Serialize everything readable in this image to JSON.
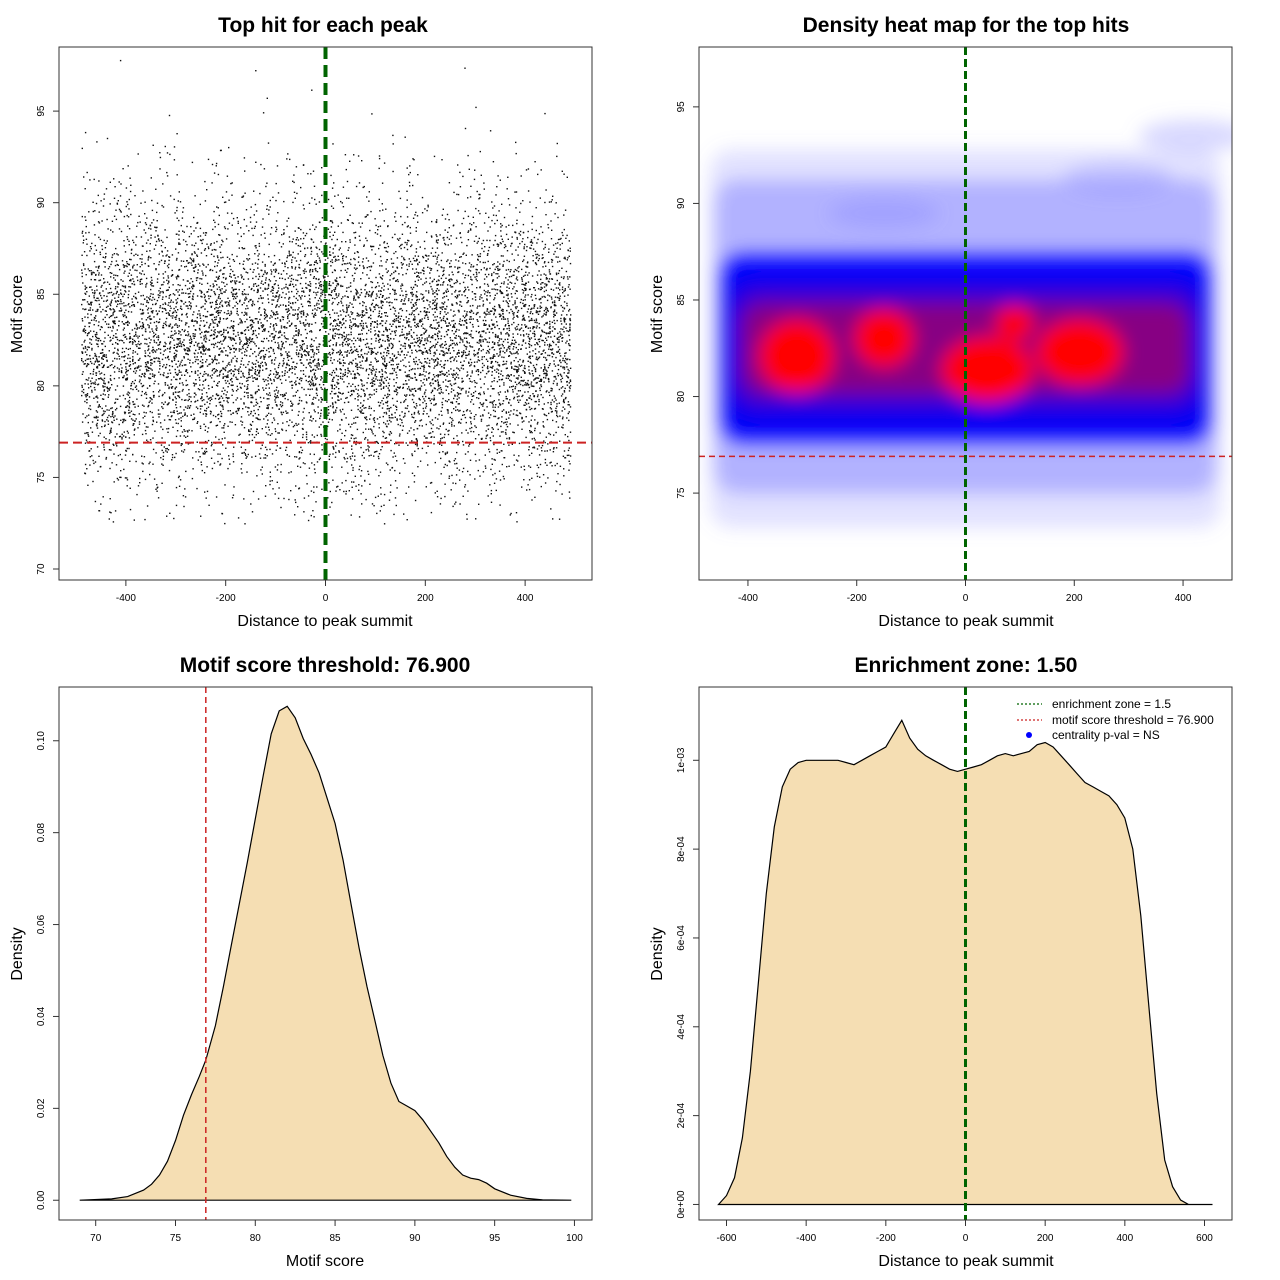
{
  "chart_data": [
    {
      "type": "scatter",
      "title": "Top hit for each peak",
      "xlabel": "Distance to peak summit",
      "ylabel": "Motif score",
      "xlim": [
        -534,
        534
      ],
      "ylim": [
        69.4,
        98.5
      ],
      "xticks": [
        -400,
        -200,
        0,
        200,
        400
      ],
      "yticks": [
        70,
        75,
        80,
        85,
        90,
        95
      ],
      "n_points": 9000,
      "x_range": [
        -490,
        490
      ],
      "score_mean": 82.5,
      "score_sd": 3.9,
      "vline": {
        "x": 0,
        "color": "#006400",
        "style": "dashed"
      },
      "hline": {
        "y": 76.9,
        "color": "#cc2222",
        "style": "dashed"
      },
      "grid": false,
      "legend": "none"
    },
    {
      "type": "heatmap",
      "title": "Density heat map for the top hits",
      "xlabel": "Distance to peak summit",
      "ylabel": "Motif score",
      "xlim": [
        -490,
        490
      ],
      "ylim": [
        70.5,
        98.1
      ],
      "xticks": [
        -400,
        -200,
        0,
        200,
        400
      ],
      "yticks": [
        75,
        80,
        85,
        90,
        95
      ],
      "color_scale": [
        "#ffffff",
        "#0000ff",
        "#ff0000"
      ],
      "density_peak_score": 82,
      "vline": {
        "x": 0,
        "color": "#006400",
        "style": "dashed"
      },
      "hline": {
        "y": 76.9,
        "color": "#cc2222",
        "style": "dashed"
      },
      "grid": false,
      "legend": "none"
    },
    {
      "type": "area",
      "title": "Motif score threshold: 76.900",
      "xlabel": "Motif score",
      "ylabel": "Density",
      "xlim": [
        67.7,
        101.1
      ],
      "ylim": [
        -0.0043,
        0.1117
      ],
      "xticks": [
        70,
        75,
        80,
        85,
        90,
        95,
        100
      ],
      "yticks": [
        0.0,
        0.02,
        0.04,
        0.06,
        0.08,
        0.1
      ],
      "ytick_labels": [
        "0.00",
        "0.02",
        "0.04",
        "0.06",
        "0.08",
        "0.10"
      ],
      "x": [
        69.0,
        71.0,
        72.0,
        73.0,
        73.5,
        74.0,
        74.5,
        75.0,
        75.5,
        76.0,
        76.5,
        76.9,
        77.5,
        78.0,
        78.5,
        79.0,
        79.5,
        80.0,
        80.5,
        81.0,
        81.5,
        82.0,
        82.5,
        83.0,
        83.5,
        84.0,
        84.5,
        85.0,
        85.5,
        86.0,
        86.5,
        87.0,
        87.5,
        88.0,
        88.5,
        89.0,
        89.5,
        90.0,
        90.5,
        91.0,
        91.5,
        92.0,
        92.5,
        93.0,
        93.5,
        94.0,
        94.5,
        95.0,
        96.0,
        97.0,
        98.0,
        99.8
      ],
      "y": [
        0.0,
        0.0003,
        0.0008,
        0.0022,
        0.0035,
        0.0055,
        0.0085,
        0.013,
        0.0185,
        0.023,
        0.027,
        0.0305,
        0.038,
        0.0465,
        0.0555,
        0.0645,
        0.0735,
        0.083,
        0.0925,
        0.1015,
        0.1065,
        0.1075,
        0.105,
        0.1005,
        0.097,
        0.093,
        0.0875,
        0.082,
        0.074,
        0.0645,
        0.055,
        0.0465,
        0.039,
        0.0315,
        0.0255,
        0.0215,
        0.0205,
        0.0195,
        0.0175,
        0.015,
        0.0125,
        0.0095,
        0.0072,
        0.0055,
        0.0048,
        0.0045,
        0.0037,
        0.0025,
        0.0011,
        0.0004,
        0.0001,
        0.0
      ],
      "fill": "#f5deb3",
      "vline": {
        "x": 76.9,
        "color": "#cc2222",
        "style": "dashed"
      },
      "grid": false,
      "legend": "none"
    },
    {
      "type": "area",
      "title": "Enrichment zone: 1.50",
      "xlabel": "Distance to peak summit",
      "ylabel": "Density",
      "xlim": [
        -669,
        669
      ],
      "ylim": [
        -3.5e-05,
        0.001165
      ],
      "xticks": [
        -600,
        -400,
        -200,
        0,
        200,
        400,
        600
      ],
      "yticks": [
        0,
        0.0002,
        0.0004,
        0.0006,
        0.0008,
        0.001
      ],
      "ytick_labels": [
        "0e+00",
        "2e-04",
        "4e-04",
        "6e-04",
        "8e-04",
        "1e-03"
      ],
      "x": [
        -620,
        -600,
        -580,
        -560,
        -540,
        -520,
        -500,
        -480,
        -460,
        -440,
        -420,
        -400,
        -380,
        -360,
        -340,
        -320,
        -300,
        -280,
        -260,
        -240,
        -220,
        -200,
        -180,
        -160,
        -140,
        -120,
        -100,
        -80,
        -60,
        -40,
        -20,
        0,
        20,
        40,
        60,
        80,
        100,
        120,
        140,
        160,
        180,
        200,
        220,
        240,
        260,
        280,
        300,
        320,
        340,
        360,
        380,
        400,
        420,
        440,
        460,
        480,
        500,
        520,
        540,
        560,
        580,
        600,
        620
      ],
      "y": [
        0.0,
        2e-05,
        6e-05,
        0.00015,
        0.0003,
        0.0005,
        0.0007,
        0.00085,
        0.00094,
        0.00098,
        0.000995,
        0.001,
        0.001,
        0.001,
        0.001,
        0.001,
        0.000995,
        0.00099,
        0.001,
        0.00101,
        0.00102,
        0.00103,
        0.00106,
        0.00109,
        0.00105,
        0.001025,
        0.00101,
        0.001,
        0.00099,
        0.00098,
        0.000975,
        0.00098,
        0.000985,
        0.00099,
        0.001,
        0.00101,
        0.001015,
        0.00101,
        0.001015,
        0.00102,
        0.001035,
        0.00104,
        0.00103,
        0.00101,
        0.00099,
        0.00097,
        0.00095,
        0.00094,
        0.00093,
        0.00092,
        0.0009,
        0.00087,
        0.0008,
        0.00065,
        0.00045,
        0.00025,
        0.0001,
        4e-05,
        1e-05,
        0.0,
        0.0,
        0.0,
        0.0
      ],
      "fill": "#f5deb3",
      "vline": {
        "x": 0,
        "color": "#006400",
        "style": "dashed"
      },
      "legend_position": "top-right",
      "legend_entries": [
        {
          "label": "enrichment zone = 1.5",
          "color": "#006400",
          "symbol": "dotted-line"
        },
        {
          "label": "motif score threshold = 76.900",
          "color": "#cc2222",
          "symbol": "dotted-line"
        },
        {
          "label": "centrality p-val = NS",
          "color": "#0000ff",
          "symbol": "point"
        }
      ],
      "grid": false
    }
  ]
}
